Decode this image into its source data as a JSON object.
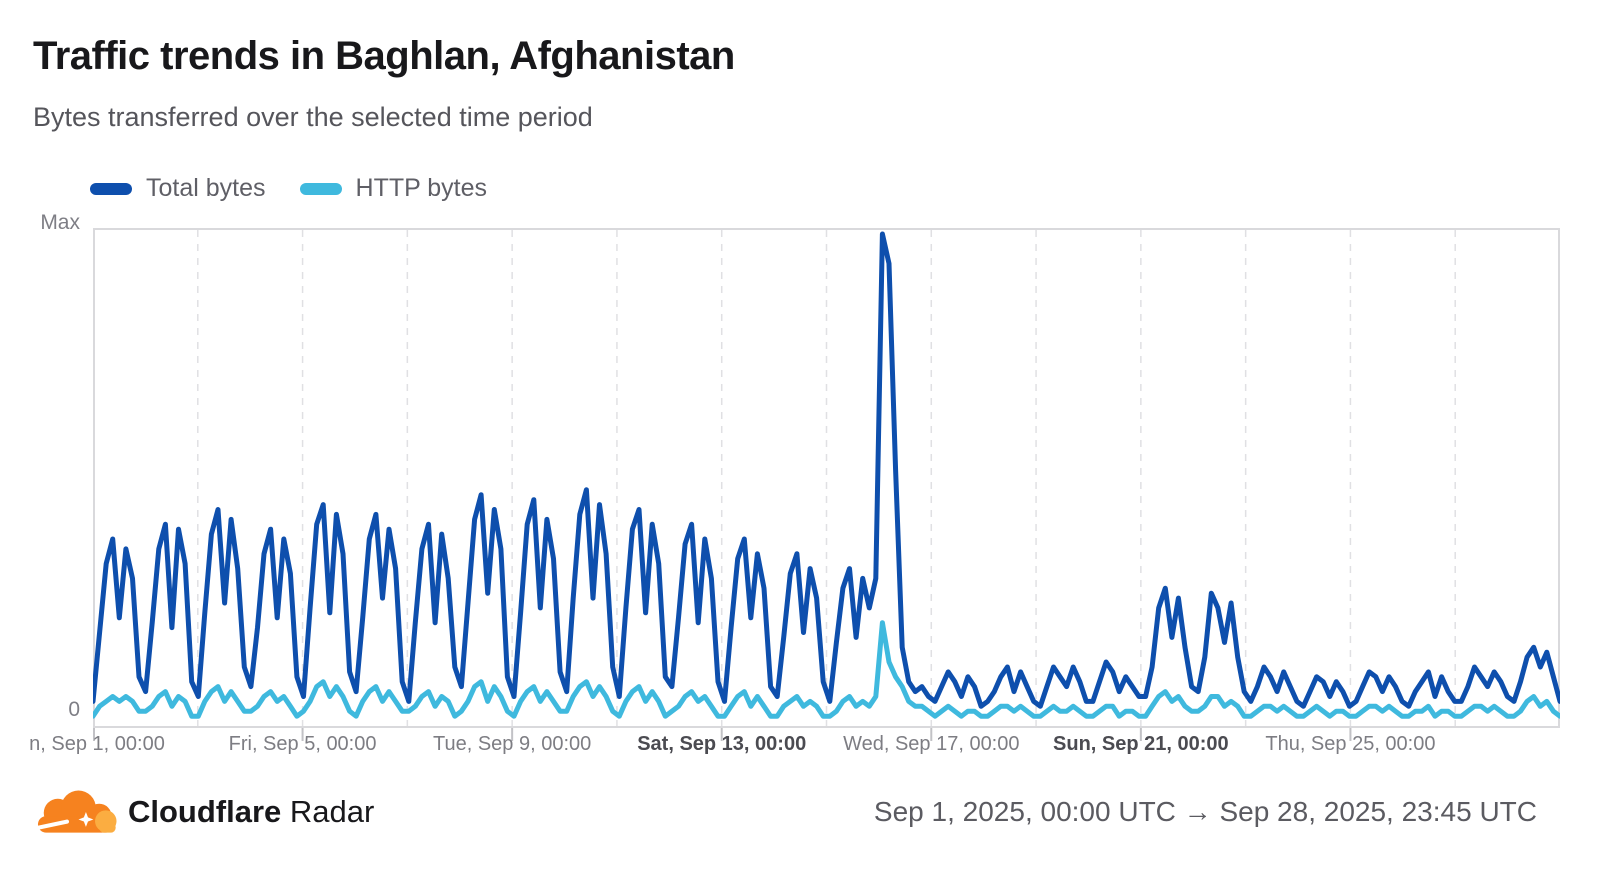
{
  "header": {
    "title": "Traffic trends in Baghlan, Afghanistan",
    "subtitle": "Bytes transferred over the selected time period"
  },
  "legend": {
    "items": [
      {
        "label": "Total bytes",
        "color": "#0E4FAD"
      },
      {
        "label": "HTTP bytes",
        "color": "#3FB9DE"
      }
    ]
  },
  "footer": {
    "brand_bold": "Cloudflare",
    "brand_regular": "Radar",
    "date_range": "Sep 1, 2025, 00:00 UTC → Sep 28, 2025, 23:45 UTC",
    "logo_colors": {
      "cloud": "#F6821F",
      "cloud_light": "#FBAD41"
    }
  },
  "chart_data": {
    "type": "line",
    "title": "Traffic trends in Baghlan, Afghanistan",
    "x_start": "Sep 1, 2025, 00:00 UTC",
    "x_end": "Sep 28, 2025, 23:45 UTC",
    "x_range_days": 28,
    "points_per_day": 8,
    "grid": {
      "vertical_dashed_every_days": 2,
      "border": true
    },
    "y_axis": {
      "max_label": "Max",
      "zero_label": "0",
      "scale": "fraction of max"
    },
    "x_ticks": [
      {
        "label": "n, Sep 1, 00:00",
        "day": 0,
        "bold": false
      },
      {
        "label": "Fri, Sep 5, 00:00",
        "day": 4,
        "bold": false
      },
      {
        "label": "Tue, Sep 9, 00:00",
        "day": 8,
        "bold": false
      },
      {
        "label": "Sat, Sep 13, 00:00",
        "day": 12,
        "bold": true
      },
      {
        "label": "Wed, Sep 17, 00:00",
        "day": 16,
        "bold": false
      },
      {
        "label": "Sun, Sep 21, 00:00",
        "day": 20,
        "bold": true
      },
      {
        "label": "Thu, Sep 25, 00:00",
        "day": 24,
        "bold": false
      }
    ],
    "series": [
      {
        "name": "Total bytes",
        "color": "#0E4FAD",
        "values": [
          0.05,
          0.19,
          0.33,
          0.38,
          0.22,
          0.36,
          0.3,
          0.1,
          0.07,
          0.21,
          0.36,
          0.41,
          0.2,
          0.4,
          0.33,
          0.09,
          0.06,
          0.23,
          0.39,
          0.44,
          0.25,
          0.42,
          0.32,
          0.12,
          0.08,
          0.2,
          0.35,
          0.4,
          0.22,
          0.38,
          0.31,
          0.1,
          0.06,
          0.24,
          0.41,
          0.45,
          0.23,
          0.43,
          0.35,
          0.11,
          0.07,
          0.22,
          0.38,
          0.43,
          0.26,
          0.4,
          0.32,
          0.09,
          0.05,
          0.21,
          0.36,
          0.41,
          0.21,
          0.39,
          0.3,
          0.12,
          0.08,
          0.25,
          0.42,
          0.47,
          0.27,
          0.44,
          0.36,
          0.1,
          0.06,
          0.23,
          0.41,
          0.46,
          0.24,
          0.42,
          0.34,
          0.11,
          0.07,
          0.26,
          0.43,
          0.48,
          0.26,
          0.45,
          0.35,
          0.12,
          0.06,
          0.24,
          0.4,
          0.44,
          0.23,
          0.41,
          0.33,
          0.1,
          0.08,
          0.22,
          0.37,
          0.41,
          0.21,
          0.38,
          0.3,
          0.09,
          0.05,
          0.2,
          0.34,
          0.38,
          0.22,
          0.35,
          0.28,
          0.08,
          0.06,
          0.18,
          0.31,
          0.35,
          0.19,
          0.32,
          0.26,
          0.09,
          0.05,
          0.17,
          0.28,
          0.32,
          0.18,
          0.3,
          0.24,
          0.3,
          1.0,
          0.94,
          0.52,
          0.16,
          0.09,
          0.07,
          0.08,
          0.06,
          0.05,
          0.08,
          0.11,
          0.09,
          0.06,
          0.1,
          0.08,
          0.04,
          0.05,
          0.07,
          0.1,
          0.12,
          0.07,
          0.11,
          0.08,
          0.05,
          0.04,
          0.08,
          0.12,
          0.1,
          0.08,
          0.12,
          0.09,
          0.05,
          0.05,
          0.09,
          0.13,
          0.11,
          0.07,
          0.1,
          0.08,
          0.06,
          0.06,
          0.12,
          0.24,
          0.28,
          0.18,
          0.26,
          0.16,
          0.08,
          0.07,
          0.14,
          0.27,
          0.24,
          0.17,
          0.25,
          0.14,
          0.07,
          0.05,
          0.08,
          0.12,
          0.1,
          0.07,
          0.11,
          0.08,
          0.05,
          0.04,
          0.07,
          0.1,
          0.09,
          0.06,
          0.09,
          0.07,
          0.04,
          0.05,
          0.08,
          0.11,
          0.1,
          0.07,
          0.1,
          0.08,
          0.05,
          0.04,
          0.07,
          0.09,
          0.11,
          0.06,
          0.1,
          0.07,
          0.05,
          0.05,
          0.08,
          0.12,
          0.1,
          0.08,
          0.11,
          0.09,
          0.06,
          0.05,
          0.09,
          0.14,
          0.16,
          0.12,
          0.15,
          0.1,
          0.05
        ]
      },
      {
        "name": "HTTP bytes",
        "color": "#3FB9DE",
        "values": [
          0.02,
          0.04,
          0.05,
          0.06,
          0.05,
          0.06,
          0.05,
          0.03,
          0.03,
          0.04,
          0.06,
          0.07,
          0.04,
          0.06,
          0.05,
          0.02,
          0.02,
          0.05,
          0.07,
          0.08,
          0.05,
          0.07,
          0.05,
          0.03,
          0.03,
          0.04,
          0.06,
          0.07,
          0.05,
          0.06,
          0.04,
          0.02,
          0.03,
          0.05,
          0.08,
          0.09,
          0.06,
          0.08,
          0.06,
          0.03,
          0.02,
          0.05,
          0.07,
          0.08,
          0.05,
          0.07,
          0.05,
          0.03,
          0.03,
          0.04,
          0.06,
          0.07,
          0.04,
          0.06,
          0.05,
          0.02,
          0.03,
          0.05,
          0.08,
          0.09,
          0.05,
          0.08,
          0.06,
          0.03,
          0.02,
          0.05,
          0.07,
          0.08,
          0.05,
          0.07,
          0.05,
          0.03,
          0.03,
          0.06,
          0.08,
          0.09,
          0.06,
          0.08,
          0.06,
          0.03,
          0.02,
          0.05,
          0.07,
          0.08,
          0.05,
          0.07,
          0.05,
          0.02,
          0.03,
          0.04,
          0.06,
          0.07,
          0.05,
          0.06,
          0.04,
          0.02,
          0.02,
          0.04,
          0.06,
          0.07,
          0.04,
          0.06,
          0.04,
          0.02,
          0.02,
          0.04,
          0.05,
          0.06,
          0.04,
          0.05,
          0.04,
          0.02,
          0.02,
          0.03,
          0.05,
          0.06,
          0.04,
          0.05,
          0.04,
          0.06,
          0.21,
          0.13,
          0.1,
          0.08,
          0.05,
          0.04,
          0.04,
          0.03,
          0.02,
          0.03,
          0.04,
          0.03,
          0.02,
          0.03,
          0.03,
          0.02,
          0.02,
          0.03,
          0.04,
          0.04,
          0.03,
          0.04,
          0.03,
          0.02,
          0.02,
          0.03,
          0.04,
          0.03,
          0.03,
          0.04,
          0.03,
          0.02,
          0.02,
          0.03,
          0.04,
          0.04,
          0.02,
          0.03,
          0.03,
          0.02,
          0.02,
          0.04,
          0.06,
          0.07,
          0.05,
          0.06,
          0.04,
          0.03,
          0.03,
          0.04,
          0.06,
          0.06,
          0.04,
          0.05,
          0.04,
          0.02,
          0.02,
          0.03,
          0.04,
          0.04,
          0.03,
          0.04,
          0.03,
          0.02,
          0.02,
          0.03,
          0.04,
          0.03,
          0.02,
          0.03,
          0.03,
          0.02,
          0.02,
          0.03,
          0.04,
          0.04,
          0.03,
          0.04,
          0.03,
          0.02,
          0.02,
          0.03,
          0.03,
          0.04,
          0.02,
          0.03,
          0.03,
          0.02,
          0.02,
          0.03,
          0.04,
          0.04,
          0.03,
          0.04,
          0.03,
          0.02,
          0.02,
          0.03,
          0.05,
          0.06,
          0.04,
          0.05,
          0.03,
          0.02
        ]
      }
    ],
    "colors": {
      "plot_border": "#d9d9dc",
      "gridline_dashed": "#e0e0e3",
      "tick": "#c2c2c6"
    }
  }
}
